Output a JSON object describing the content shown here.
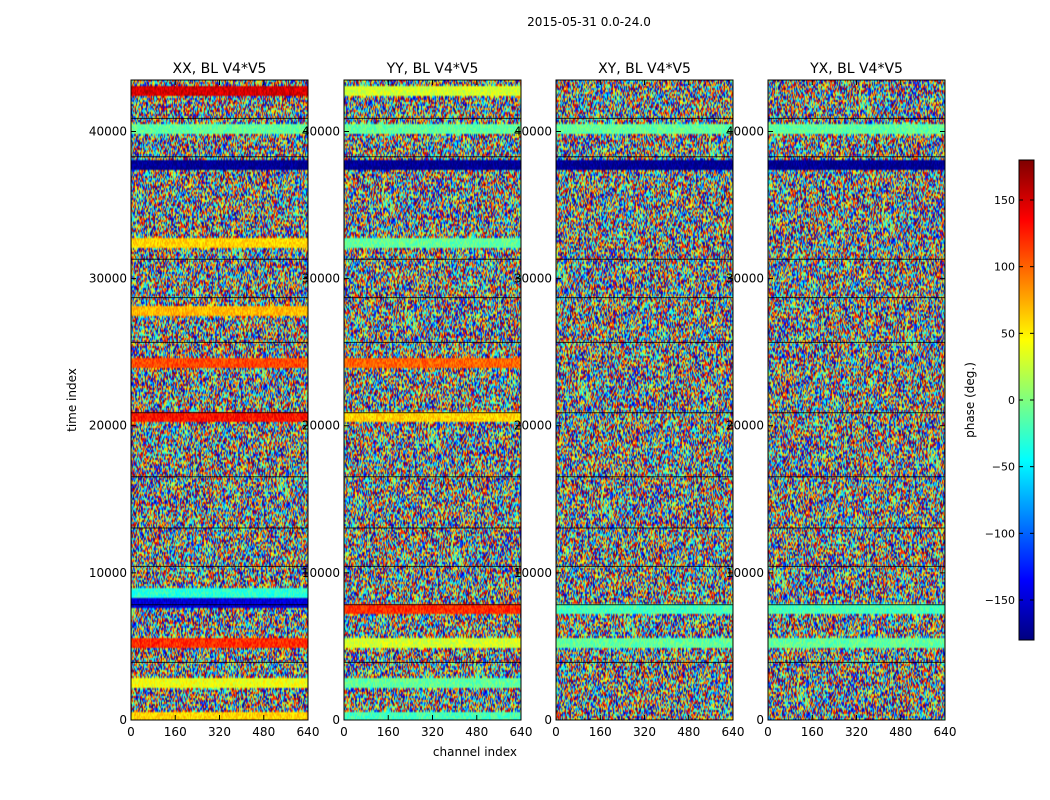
{
  "figure": {
    "suptitle": "2015-05-31 0.0-24.0"
  },
  "colormap": {
    "name": "jet",
    "stops": [
      "#00007f",
      "#0000ff",
      "#007fff",
      "#00ffff",
      "#7fff7f",
      "#ffff00",
      "#ff7f00",
      "#ff0000",
      "#7f0000"
    ]
  },
  "chart_data": [
    {
      "type": "heatmap",
      "title": "XX, BL V4*V5",
      "xlabel": "",
      "ylabel": "time index",
      "xlim": [
        0,
        640
      ],
      "ylim": [
        0,
        43500
      ],
      "xticks": [
        "0",
        "160",
        "320",
        "480",
        "640"
      ],
      "yticks": [
        "0",
        "10000",
        "20000",
        "30000",
        "40000"
      ],
      "value_range": [
        -180,
        180
      ],
      "smooth_bands": [
        {
          "t": 300,
          "phase": 60
        },
        {
          "t": 2600,
          "phase": 40
        },
        {
          "t": 5300,
          "phase": 120
        },
        {
          "t": 8000,
          "phase": -150
        },
        {
          "t": 8700,
          "phase": -30
        },
        {
          "t": 20700,
          "phase": 130
        },
        {
          "t": 24400,
          "phase": 110
        },
        {
          "t": 27800,
          "phase": 70
        },
        {
          "t": 32500,
          "phase": 60
        },
        {
          "t": 37800,
          "phase": -175
        },
        {
          "t": 40300,
          "phase": -10
        },
        {
          "t": 42800,
          "phase": 150
        }
      ]
    },
    {
      "type": "heatmap",
      "title": "YY, BL V4*V5",
      "xlabel": "channel index",
      "ylabel": "",
      "xlim": [
        0,
        640
      ],
      "ylim": [
        0,
        43500
      ],
      "xticks": [
        "0",
        "160",
        "320",
        "480",
        "640"
      ],
      "yticks": [
        "0",
        "10000",
        "20000",
        "30000",
        "40000"
      ],
      "value_range": [
        -180,
        180
      ],
      "smooth_bands": [
        {
          "t": 300,
          "phase": -20
        },
        {
          "t": 2600,
          "phase": -10
        },
        {
          "t": 5300,
          "phase": 30
        },
        {
          "t": 7600,
          "phase": 120
        },
        {
          "t": 20700,
          "phase": 60
        },
        {
          "t": 24400,
          "phase": 100
        },
        {
          "t": 32500,
          "phase": -10
        },
        {
          "t": 37800,
          "phase": -175
        },
        {
          "t": 40300,
          "phase": -10
        },
        {
          "t": 42800,
          "phase": 30
        }
      ]
    },
    {
      "type": "heatmap",
      "title": "XY, BL V4*V5",
      "xlabel": "",
      "ylabel": "",
      "xlim": [
        0,
        640
      ],
      "ylim": [
        0,
        43500
      ],
      "xticks": [
        "0",
        "160",
        "320",
        "480",
        "640"
      ],
      "yticks": [
        "0",
        "10000",
        "20000",
        "30000",
        "40000"
      ],
      "value_range": [
        -180,
        180
      ],
      "smooth_bands": [
        {
          "t": 5300,
          "phase": -10
        },
        {
          "t": 7600,
          "phase": -20
        },
        {
          "t": 37800,
          "phase": -175
        },
        {
          "t": 40300,
          "phase": -10
        }
      ]
    },
    {
      "type": "heatmap",
      "title": "YX, BL V4*V5",
      "xlabel": "",
      "ylabel": "",
      "xlim": [
        0,
        640
      ],
      "ylim": [
        0,
        43500
      ],
      "xticks": [
        "0",
        "160",
        "320",
        "480",
        "640"
      ],
      "yticks": [
        "0",
        "10000",
        "20000",
        "30000",
        "40000"
      ],
      "value_range": [
        -180,
        180
      ],
      "smooth_bands": [
        {
          "t": 5300,
          "phase": -10
        },
        {
          "t": 7600,
          "phase": -20
        },
        {
          "t": 37800,
          "phase": -175
        },
        {
          "t": 40300,
          "phase": -10
        }
      ]
    }
  ],
  "colorbar": {
    "label": "phase (deg.)",
    "range": [
      -180,
      180
    ],
    "ticks": [
      {
        "value": -150,
        "label": "−150"
      },
      {
        "value": -100,
        "label": "−100"
      },
      {
        "value": -50,
        "label": "−50"
      },
      {
        "value": 0,
        "label": "0"
      },
      {
        "value": 50,
        "label": "50"
      },
      {
        "value": 100,
        "label": "100"
      },
      {
        "value": 150,
        "label": "150"
      }
    ]
  }
}
